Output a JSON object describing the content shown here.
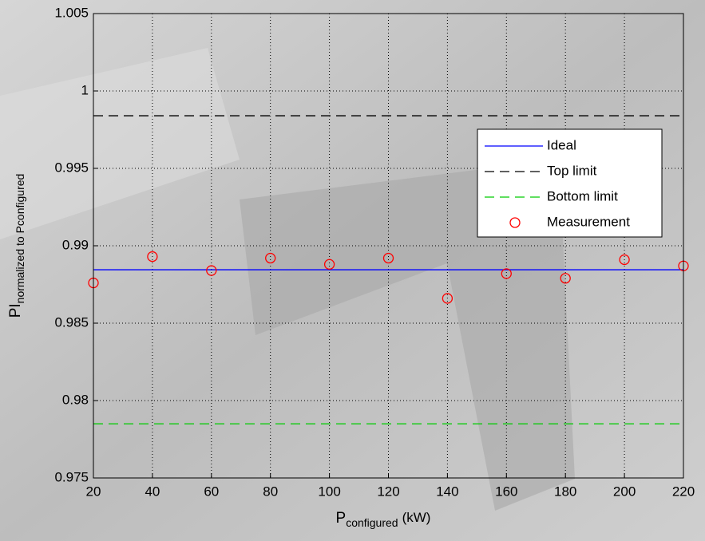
{
  "chart_data": {
    "type": "line",
    "x_label": {
      "main": "P",
      "sub": "configured",
      "unit": "(kW)"
    },
    "y_label": {
      "main": "PI",
      "sub": "normalized to Pconfigured"
    },
    "xlim": [
      20,
      220
    ],
    "xticks": [
      20,
      40,
      60,
      80,
      100,
      120,
      140,
      160,
      180,
      200,
      220
    ],
    "ylim": [
      0.975,
      1.005
    ],
    "yticks": [
      0.975,
      0.98,
      0.985,
      0.99,
      0.995,
      1,
      1.005
    ],
    "grid": true,
    "legend": "upper right",
    "series": [
      {
        "name": "Ideal",
        "color": "#0000ff",
        "style": "solid",
        "x": [
          20,
          220
        ],
        "values": [
          0.98845,
          0.98845
        ]
      },
      {
        "name": "Top limit",
        "color": "#000000",
        "style": "dashed",
        "x": [
          20,
          220
        ],
        "values": [
          0.9984,
          0.9984
        ]
      },
      {
        "name": "Bottom limit",
        "color": "#00cc00",
        "style": "dashed",
        "x": [
          20,
          220
        ],
        "values": [
          0.9785,
          0.9785
        ]
      },
      {
        "name": "Measurement",
        "color": "#ff0000",
        "style": "marker",
        "x": [
          20,
          40,
          60,
          80,
          100,
          120,
          140,
          160,
          180,
          200,
          220
        ],
        "values": [
          0.9876,
          0.9893,
          0.9884,
          0.9892,
          0.9888,
          0.9892,
          0.9866,
          0.9882,
          0.9879,
          0.9891,
          0.9887
        ]
      }
    ]
  }
}
